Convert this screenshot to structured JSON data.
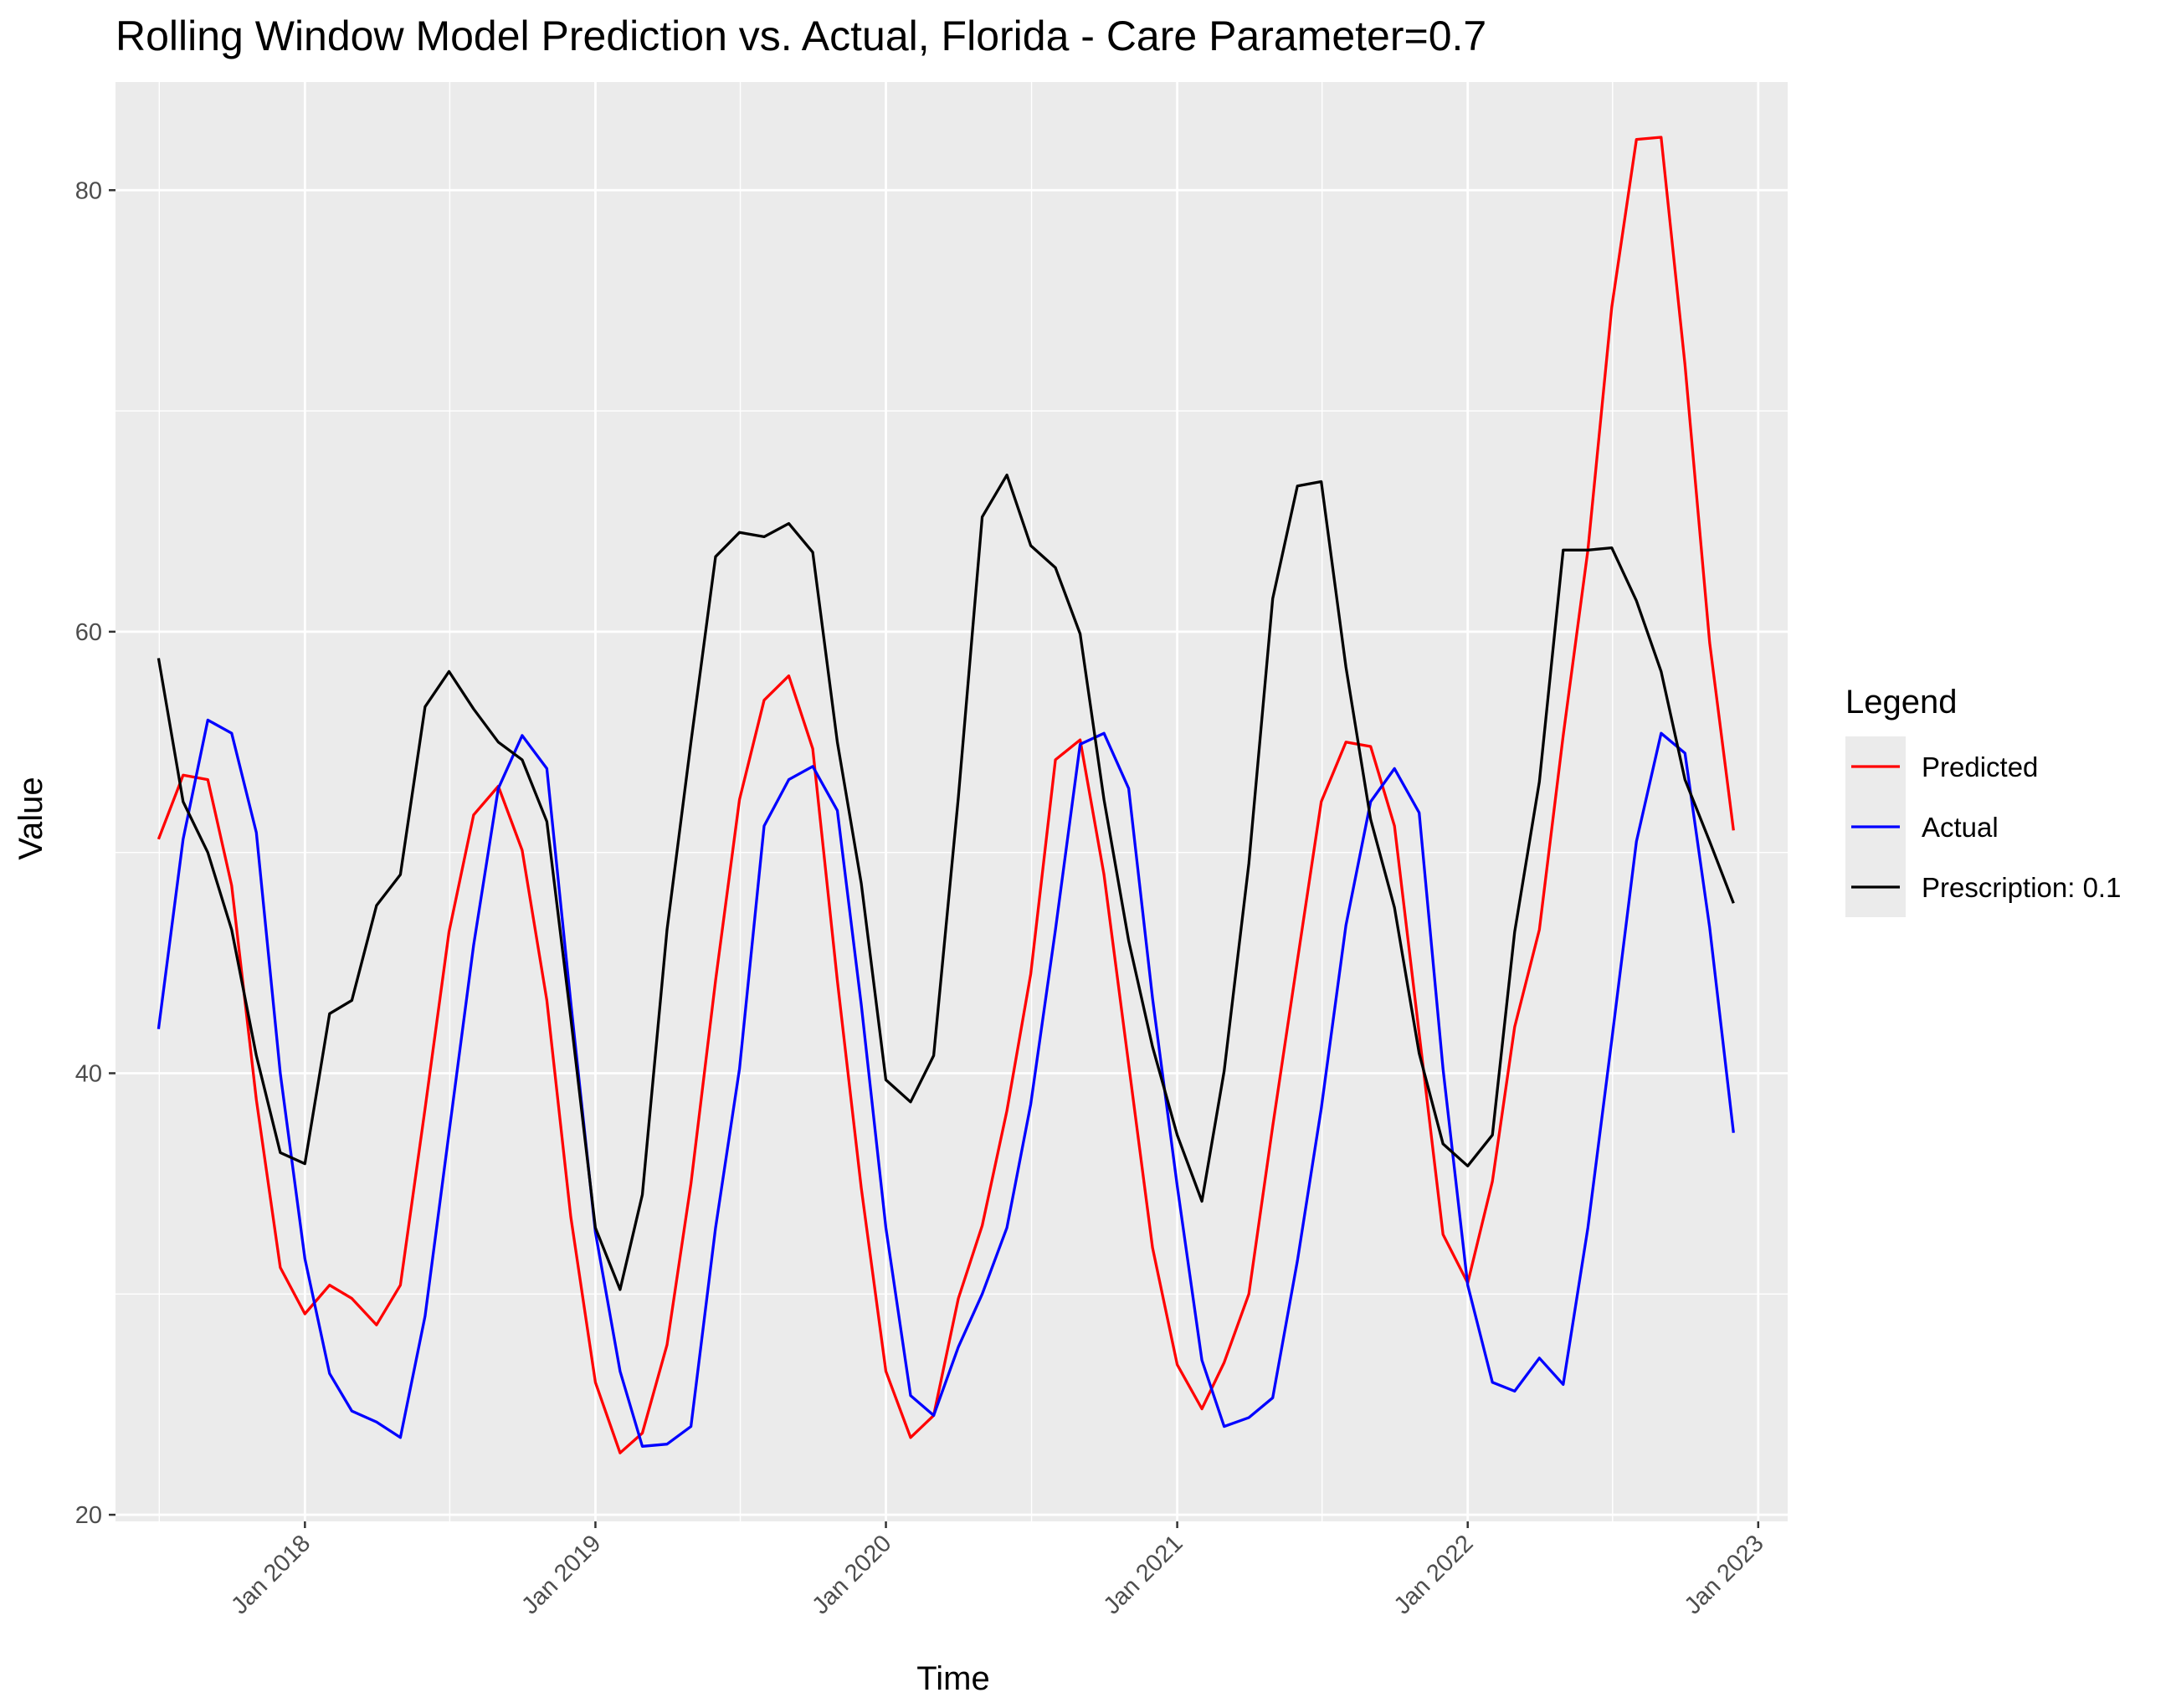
{
  "chart_data": {
    "type": "line",
    "title": "Rolling Window Model Prediction vs. Actual, Florida - Care Parameter=0.7",
    "xlabel": "Time",
    "ylabel": "Value",
    "ylim": [
      19.7,
      84.9
    ],
    "yticks": [
      20,
      40,
      60,
      80
    ],
    "xlim": [
      "2017-05-08",
      "2023-02-07"
    ],
    "xticks": [
      "Jan 2018",
      "Jan 2019",
      "Jan 2020",
      "Jan 2021",
      "Jan 2022",
      "Jan 2023"
    ],
    "grid": true,
    "legend": {
      "title": "Legend",
      "position": "right"
    },
    "x": [
      "2017-07",
      "2017-08",
      "2017-09",
      "2017-10",
      "2017-11",
      "2017-12",
      "2018-01",
      "2018-02",
      "2018-03",
      "2018-04",
      "2018-05",
      "2018-06",
      "2018-07",
      "2018-08",
      "2018-09",
      "2018-10",
      "2018-11",
      "2018-12",
      "2019-01",
      "2019-02",
      "2019-03",
      "2019-04",
      "2019-05",
      "2019-06",
      "2019-07",
      "2019-08",
      "2019-09",
      "2019-10",
      "2019-11",
      "2019-12",
      "2020-01",
      "2020-02",
      "2020-03",
      "2020-04",
      "2020-05",
      "2020-06",
      "2020-07",
      "2020-08",
      "2020-09",
      "2020-10",
      "2020-11",
      "2020-12",
      "2021-01",
      "2021-02",
      "2021-03",
      "2021-04",
      "2021-05",
      "2021-06",
      "2021-07",
      "2021-08",
      "2021-09",
      "2021-10",
      "2021-11",
      "2021-12",
      "2022-01",
      "2022-02",
      "2022-03",
      "2022-04",
      "2022-05",
      "2022-06",
      "2022-07",
      "2022-08",
      "2022-09",
      "2022-10",
      "2022-11",
      "2022-12"
    ],
    "series": [
      {
        "name": "Predicted",
        "color": "#ff0000",
        "values": [
          50.6,
          53.5,
          53.3,
          48.5,
          38.8,
          31.2,
          29.1,
          30.4,
          29.8,
          28.6,
          30.4,
          38.4,
          46.4,
          51.7,
          53.0,
          50.1,
          43.3,
          33.5,
          26.0,
          22.8,
          23.7,
          27.7,
          35.0,
          44.2,
          52.4,
          56.9,
          58.0,
          54.7,
          44.2,
          34.8,
          26.5,
          23.5,
          24.5,
          29.8,
          33.1,
          38.3,
          44.5,
          54.2,
          55.1,
          49.0,
          40.4,
          32.1,
          26.8,
          24.8,
          26.9,
          30.0,
          37.6,
          45.1,
          52.3,
          55.0,
          54.8,
          51.2,
          41.8,
          32.7,
          30.5,
          35.1,
          42.1,
          46.5,
          55.3,
          63.7,
          74.7,
          82.3,
          82.4,
          72.1,
          59.5,
          51.0
        ]
      },
      {
        "name": "Actual",
        "color": "#0000ff",
        "values": [
          42.0,
          50.6,
          56.0,
          55.4,
          50.9,
          40.0,
          31.6,
          26.4,
          24.7,
          24.2,
          23.5,
          29.0,
          37.3,
          45.8,
          52.9,
          55.3,
          53.8,
          43.2,
          32.8,
          26.5,
          23.1,
          23.2,
          24.0,
          33.0,
          40.2,
          51.2,
          53.3,
          53.9,
          51.9,
          43.1,
          33.0,
          25.4,
          24.5,
          27.6,
          30.0,
          33.0,
          38.6,
          46.5,
          54.9,
          55.4,
          52.9,
          43.4,
          34.9,
          27.0,
          24.0,
          24.4,
          25.3,
          31.5,
          38.4,
          46.7,
          52.3,
          53.8,
          51.8,
          40.2,
          30.4,
          26.0,
          25.6,
          27.1,
          25.9,
          33.0,
          41.5,
          50.5,
          55.4,
          54.5,
          46.6,
          37.3
        ]
      },
      {
        "name": "Prescription: 0.1",
        "color": "#000000",
        "values": [
          58.8,
          52.3,
          50.0,
          46.5,
          40.8,
          36.4,
          35.9,
          42.7,
          43.3,
          47.6,
          49.0,
          56.6,
          58.2,
          56.5,
          55.0,
          54.2,
          51.4,
          42.5,
          33.0,
          30.2,
          34.5,
          46.5,
          55.0,
          63.4,
          64.5,
          64.3,
          64.9,
          63.6,
          55.0,
          48.6,
          39.7,
          38.7,
          40.8,
          52.5,
          65.2,
          67.1,
          63.9,
          62.9,
          59.9,
          52.4,
          46.0,
          41.2,
          37.2,
          34.2,
          40.1,
          49.5,
          61.5,
          66.6,
          66.8,
          58.4,
          51.5,
          47.5,
          40.9,
          36.8,
          35.8,
          37.2,
          46.4,
          53.2,
          63.7,
          63.7,
          63.8,
          61.4,
          58.2,
          53.3,
          50.5,
          47.7
        ]
      }
    ]
  }
}
